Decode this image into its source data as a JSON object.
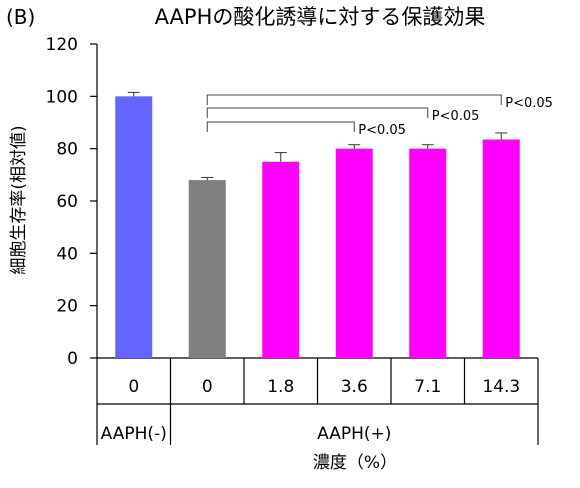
{
  "chart_data": {
    "type": "bar",
    "panel_label": "(B)",
    "title": "AAPHの酸化誘導に対する保護効果",
    "ylabel": "細胞生存率(相対値)",
    "xlabel": "濃度（%）",
    "ylim": [
      0,
      120
    ],
    "yticks": [
      0,
      20,
      40,
      60,
      80,
      100,
      120
    ],
    "grid": false,
    "categories": [
      "0",
      "0",
      "1.8",
      "3.6",
      "7.1",
      "14.3"
    ],
    "values": [
      100,
      68,
      75,
      80,
      80,
      83.5
    ],
    "errors": [
      1.5,
      1,
      3.5,
      1.5,
      1.5,
      2.5
    ],
    "bar_colors": [
      "#6464ff",
      "#7f7f7f",
      "#ff00ff",
      "#ff00ff",
      "#ff00ff",
      "#ff00ff"
    ],
    "groups": [
      {
        "label": "AAPH(-)",
        "start": 0,
        "end": 0
      },
      {
        "label": "AAPH(+)",
        "start": 1,
        "end": 5
      }
    ],
    "significance": [
      {
        "from": 1,
        "to": 3,
        "label": "P<0.05"
      },
      {
        "from": 1,
        "to": 4,
        "label": "P<0.05"
      },
      {
        "from": 1,
        "to": 5,
        "label": "P<0.05"
      }
    ]
  }
}
